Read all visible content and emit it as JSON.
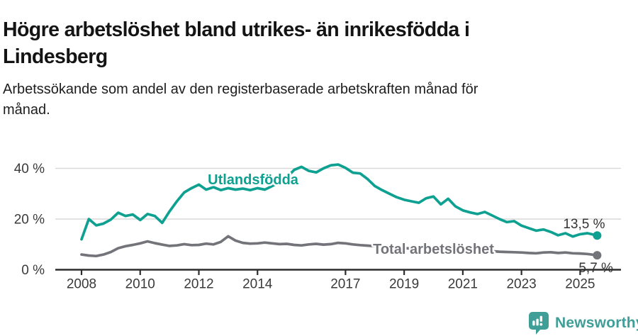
{
  "header": {
    "title_lines": [
      "Högre arbetslöshet bland utrikes- än inrikesfödda i",
      "Lindesberg"
    ],
    "subtitle_lines": [
      "Arbetssökande som andel av den registerbaserade arbetskraften månad för",
      "månad."
    ]
  },
  "chart_data": {
    "type": "line",
    "title": "Högre arbetslöshet bland utrikes- än inrikesfödda i Lindesberg",
    "subtitle": "Arbetssökande som andel av den registerbaserade arbetskraften månad för månad.",
    "grid": "horizontal",
    "legend_position": "inline-labels",
    "xlim": [
      2007.1,
      2026.4
    ],
    "ylim": [
      0,
      45
    ],
    "y_ticks": [
      {
        "value": 0,
        "label": "0 %"
      },
      {
        "value": 20,
        "label": "20 %"
      },
      {
        "value": 40,
        "label": "40 %"
      }
    ],
    "x_ticks": [
      {
        "year": 2008,
        "label": "2008"
      },
      {
        "year": 2010,
        "label": "2010"
      },
      {
        "year": 2012,
        "label": "2012"
      },
      {
        "year": 2014,
        "label": "2014"
      },
      {
        "year": 2017,
        "label": "2017"
      },
      {
        "year": 2019,
        "label": "2019"
      },
      {
        "year": 2021,
        "label": "2021"
      },
      {
        "year": 2023,
        "label": "2023"
      },
      {
        "year": 2025,
        "label": "2025"
      }
    ],
    "x": [
      2008,
      2008.25,
      2008.5,
      2008.75,
      2009,
      2009.25,
      2009.5,
      2009.75,
      2010,
      2010.25,
      2010.5,
      2010.75,
      2011,
      2011.25,
      2011.5,
      2011.75,
      2012,
      2012.25,
      2012.5,
      2012.75,
      2013,
      2013.25,
      2013.5,
      2013.75,
      2014,
      2014.25,
      2014.5,
      2014.75,
      2015,
      2015.25,
      2015.5,
      2015.75,
      2016,
      2016.25,
      2016.5,
      2016.75,
      2017,
      2017.25,
      2017.5,
      2017.75,
      2018,
      2018.25,
      2018.5,
      2018.75,
      2019,
      2019.25,
      2019.5,
      2019.75,
      2020,
      2020.25,
      2020.5,
      2020.75,
      2021,
      2021.25,
      2021.5,
      2021.75,
      2022,
      2022.25,
      2022.5,
      2022.75,
      2023,
      2023.25,
      2023.5,
      2023.75,
      2024,
      2024.25,
      2024.5,
      2024.75,
      2025,
      2025.25,
      2025.58
    ],
    "series": [
      {
        "name": "Utlandsfödda",
        "color": "#0ea091",
        "end_label": "13,5 %",
        "last_value_pct": 13.5,
        "label_anchor": {
          "year": 2013.85,
          "value": 35.7
        },
        "values": [
          12.0,
          20.0,
          17.5,
          18.2,
          19.8,
          22.5,
          21.2,
          21.8,
          19.6,
          22.0,
          21.2,
          18.5,
          23.0,
          27.0,
          30.5,
          32.2,
          33.6,
          31.6,
          32.6,
          31.4,
          32.2,
          31.6,
          32.0,
          31.4,
          32.2,
          31.6,
          33.0,
          34.6,
          36.4,
          39.4,
          40.6,
          39.0,
          38.4,
          40.0,
          41.2,
          41.5,
          40.2,
          38.3,
          38.0,
          35.8,
          33.0,
          31.4,
          30.0,
          28.6,
          27.6,
          27.0,
          26.4,
          28.2,
          28.9,
          25.8,
          28.0,
          25.0,
          23.4,
          22.6,
          22.0,
          22.8,
          21.4,
          20.0,
          18.8,
          19.2,
          17.4,
          16.4,
          15.4,
          15.9,
          14.9,
          13.6,
          14.4,
          13.1,
          14.0,
          14.4,
          13.5
        ]
      },
      {
        "name": "Total arbetslöshet",
        "color": "#73737a",
        "end_label": "5,7 %",
        "last_value_pct": 5.7,
        "label_anchor": {
          "year": 2020.0,
          "value": 8.25
        },
        "values": [
          6.0,
          5.6,
          5.4,
          6.0,
          7.0,
          8.5,
          9.3,
          9.8,
          10.4,
          11.2,
          10.5,
          9.9,
          9.4,
          9.6,
          10.1,
          9.7,
          9.8,
          10.3,
          10.0,
          11.0,
          13.2,
          11.5,
          10.6,
          10.3,
          10.4,
          10.7,
          10.4,
          10.1,
          10.2,
          9.8,
          9.6,
          10.0,
          10.2,
          9.9,
          10.1,
          10.6,
          10.4,
          10.0,
          9.7,
          9.5,
          9.3,
          9.1,
          8.9,
          8.7,
          8.5,
          8.4,
          8.3,
          8.6,
          8.8,
          9.2,
          9.0,
          8.7,
          8.4,
          8.1,
          7.8,
          7.6,
          7.3,
          7.1,
          7.0,
          6.9,
          6.8,
          6.6,
          6.5,
          6.8,
          6.9,
          6.6,
          6.8,
          6.5,
          6.4,
          6.2,
          5.7
        ]
      }
    ]
  },
  "footer": {
    "brand": "Newsworthy",
    "brand_color": "#3f9e97",
    "logo_icon": "speech-bubble-bar-chart"
  }
}
